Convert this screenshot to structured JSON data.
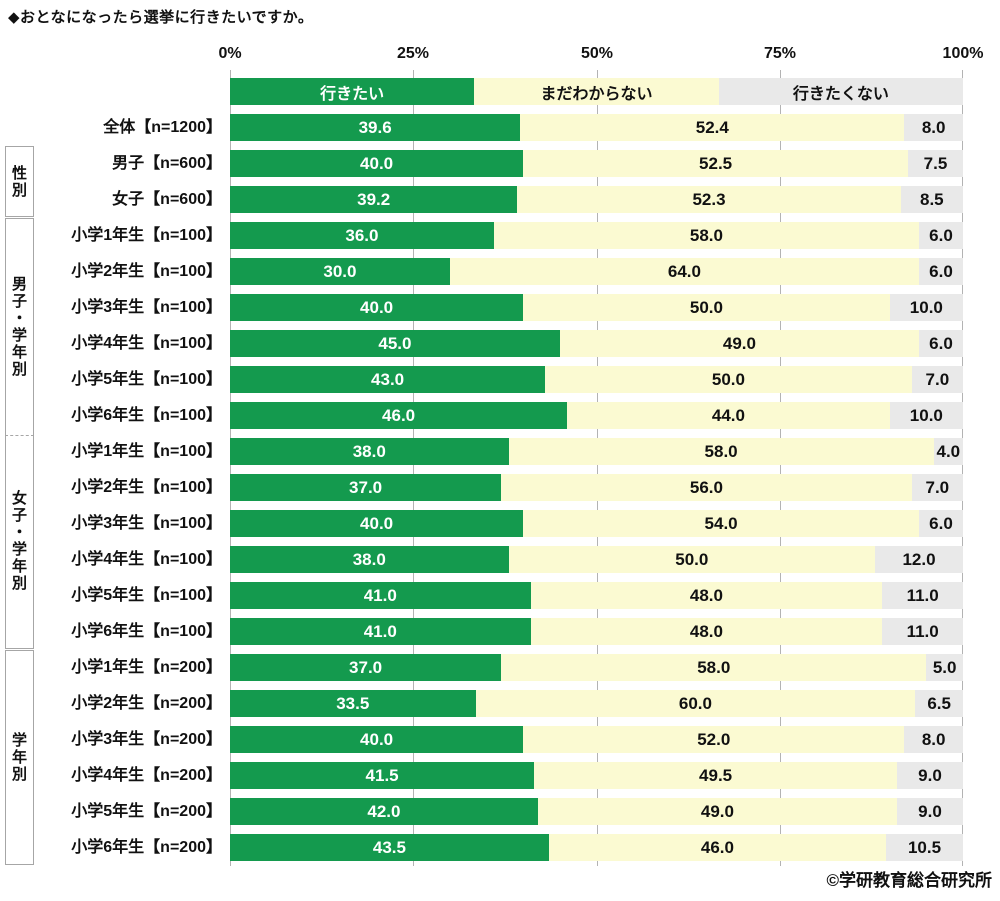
{
  "title": "◆おとなになったら選挙に行きたいですか。",
  "footer": {
    "credit": "©学研教育総合研究所"
  },
  "colors": {
    "want": "#149a4e",
    "unsure": "#fbfad2",
    "not_want": "#e9e9e9",
    "grid": "#b3b3b3",
    "box_border": "#a6a6a6",
    "value_on_green": "#ffffff",
    "value_dark": "#111111"
  },
  "chart_data": {
    "type": "bar",
    "orientation": "horizontal",
    "stacked": true,
    "xlim": [
      0,
      100
    ],
    "x_ticks": [
      "0%",
      "25%",
      "50%",
      "75%",
      "100%"
    ],
    "series": [
      "行きたい",
      "まだわからない",
      "行きたくない"
    ],
    "groups": [
      {
        "label": "",
        "rows": [
          {
            "label": "全体【n=1200】",
            "values": [
              39.6,
              52.4,
              8.0
            ]
          }
        ]
      },
      {
        "label": "性別",
        "rows": [
          {
            "label": "男子【n=600】",
            "values": [
              40.0,
              52.5,
              7.5
            ]
          },
          {
            "label": "女子【n=600】",
            "values": [
              39.2,
              52.3,
              8.5
            ]
          }
        ]
      },
      {
        "label": "男子・学年別",
        "rows": [
          {
            "label": "小学1年生【n=100】",
            "values": [
              36.0,
              58.0,
              6.0
            ]
          },
          {
            "label": "小学2年生【n=100】",
            "values": [
              30.0,
              64.0,
              6.0
            ]
          },
          {
            "label": "小学3年生【n=100】",
            "values": [
              40.0,
              50.0,
              10.0
            ]
          },
          {
            "label": "小学4年生【n=100】",
            "values": [
              45.0,
              49.0,
              6.0
            ]
          },
          {
            "label": "小学5年生【n=100】",
            "values": [
              43.0,
              50.0,
              7.0
            ]
          },
          {
            "label": "小学6年生【n=100】",
            "values": [
              46.0,
              44.0,
              10.0
            ]
          }
        ]
      },
      {
        "label": "女子・学年別",
        "rows": [
          {
            "label": "小学1年生【n=100】",
            "values": [
              38.0,
              58.0,
              4.0
            ]
          },
          {
            "label": "小学2年生【n=100】",
            "values": [
              37.0,
              56.0,
              7.0
            ]
          },
          {
            "label": "小学3年生【n=100】",
            "values": [
              40.0,
              54.0,
              6.0
            ]
          },
          {
            "label": "小学4年生【n=100】",
            "values": [
              38.0,
              50.0,
              12.0
            ]
          },
          {
            "label": "小学5年生【n=100】",
            "values": [
              41.0,
              48.0,
              11.0
            ]
          },
          {
            "label": "小学6年生【n=100】",
            "values": [
              41.0,
              48.0,
              11.0
            ]
          }
        ]
      },
      {
        "label": "学年別",
        "rows": [
          {
            "label": "小学1年生【n=200】",
            "values": [
              37.0,
              58.0,
              5.0
            ]
          },
          {
            "label": "小学2年生【n=200】",
            "values": [
              33.5,
              60.0,
              6.5
            ]
          },
          {
            "label": "小学3年生【n=200】",
            "values": [
              40.0,
              52.0,
              8.0
            ]
          },
          {
            "label": "小学4年生【n=200】",
            "values": [
              41.5,
              49.5,
              9.0
            ]
          },
          {
            "label": "小学5年生【n=200】",
            "values": [
              42.0,
              49.0,
              9.0
            ]
          },
          {
            "label": "小学6年生【n=200】",
            "values": [
              43.5,
              46.0,
              10.5
            ]
          }
        ]
      }
    ]
  }
}
